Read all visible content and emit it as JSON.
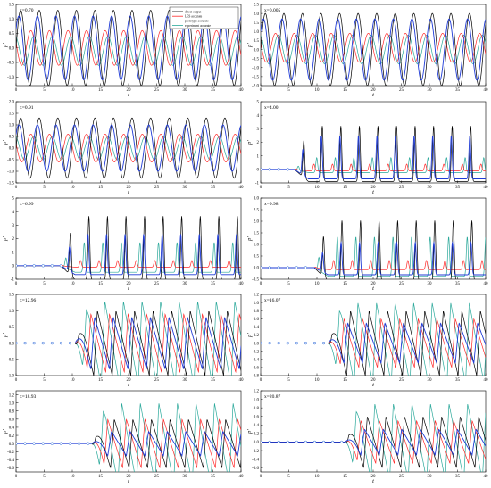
{
  "figure": {
    "series": [
      {
        "name": "direct output",
        "color": "#000000"
      },
      {
        "name": "LES accurate",
        "color": "#ff2a2a"
      },
      {
        "name": "prototype accurate",
        "color": "#1f3bd6"
      },
      {
        "name": "experiment accurate",
        "color": "#2aa89a"
      }
    ]
  },
  "chart_data": [
    {
      "type": "line",
      "annotation": "x=0.70",
      "xlabel": "t",
      "ylabel": "p'",
      "xlim": [
        0,
        40
      ],
      "ylim": [
        -1.3,
        1.5
      ],
      "yticks": [
        -1.0,
        -0.5,
        0.0,
        0.5,
        1.0,
        1.5
      ],
      "xticks": [
        0,
        5,
        10,
        15,
        20,
        25,
        30,
        35,
        40
      ],
      "onset": 0,
      "period": 3.3,
      "shape": "sine",
      "amp": [
        1.3,
        0.6,
        1.1,
        0.5
      ],
      "offset": [
        0.0,
        0.0,
        0.0,
        -0.1
      ],
      "phase": [
        0.0,
        0.45,
        0.1,
        0.3
      ],
      "markers": false,
      "legend": true
    },
    {
      "type": "line",
      "annotation": "x=0.005",
      "xlabel": "t",
      "ylabel": "p'",
      "xlim": [
        0,
        40
      ],
      "ylim": [
        -2.0,
        2.5
      ],
      "yticks": [
        -2.0,
        -1.5,
        -1.0,
        -0.5,
        0.0,
        0.5,
        1.0,
        1.5,
        2.0,
        2.5
      ],
      "xticks": [
        0,
        5,
        10,
        15,
        20,
        25,
        30,
        35,
        40
      ],
      "onset": 0,
      "period": 3.3,
      "shape": "sine",
      "amp": [
        2.0,
        0.8,
        1.7,
        0.8
      ],
      "offset": [
        0.0,
        0.1,
        0.0,
        0.0
      ],
      "phase": [
        0.0,
        0.45,
        0.1,
        0.3
      ],
      "markers": false,
      "legend": false
    },
    {
      "type": "line",
      "annotation": "x=0.91",
      "xlabel": "t",
      "ylabel": "p'",
      "xlim": [
        0,
        40
      ],
      "ylim": [
        -1.5,
        2.0
      ],
      "yticks": [
        -1.5,
        -1.0,
        -0.5,
        0.0,
        0.5,
        1.0,
        1.5,
        2.0
      ],
      "xticks": [
        0,
        5,
        10,
        15,
        20,
        25,
        30,
        35,
        40
      ],
      "onset": 0,
      "period": 3.3,
      "shape": "sine",
      "amp": [
        1.3,
        0.6,
        1.0,
        0.5
      ],
      "offset": [
        0.0,
        0.0,
        0.0,
        0.0
      ],
      "phase": [
        0.0,
        0.45,
        0.1,
        0.3
      ],
      "markers": false,
      "legend": false
    },
    {
      "type": "line",
      "annotation": "x=4.00",
      "xlabel": "t",
      "ylabel": "p'",
      "xlim": [
        0,
        40
      ],
      "ylim": [
        -1,
        5
      ],
      "yticks": [
        -1,
        0,
        1,
        2,
        3,
        4,
        5
      ],
      "xticks": [
        0,
        5,
        10,
        15,
        20,
        25,
        30,
        35,
        40
      ],
      "onset": 6,
      "period": 3.3,
      "shape": "spike",
      "amp": [
        4.1,
        0.5,
        3.2,
        1.1
      ],
      "offset": [
        0.0,
        0.0,
        0.0,
        0.0
      ],
      "phase": [
        0.0,
        0.45,
        0.05,
        0.3
      ],
      "markers": true,
      "legend": false
    },
    {
      "type": "line",
      "annotation": "x=6.99",
      "xlabel": "t",
      "ylabel": "p'",
      "xlim": [
        0,
        40
      ],
      "ylim": [
        -1,
        5
      ],
      "yticks": [
        -1,
        0,
        1,
        2,
        3,
        4,
        5
      ],
      "xticks": [
        0,
        5,
        10,
        15,
        20,
        25,
        30,
        35,
        40
      ],
      "onset": 8,
      "period": 3.3,
      "shape": "spike",
      "amp": [
        4.7,
        0.5,
        3.0,
        2.2
      ],
      "offset": [
        0.0,
        0.0,
        0.0,
        0.0
      ],
      "phase": [
        0.0,
        0.45,
        0.05,
        0.25
      ],
      "markers": true,
      "legend": false
    },
    {
      "type": "line",
      "annotation": "x=9.98",
      "xlabel": "t",
      "ylabel": "p'",
      "xlim": [
        0,
        40
      ],
      "ylim": [
        -0.5,
        3.0
      ],
      "yticks": [
        -0.5,
        0.0,
        0.5,
        1.0,
        1.5,
        2.0,
        2.5,
        3.0
      ],
      "xticks": [
        0,
        5,
        10,
        15,
        20,
        25,
        30,
        35,
        40
      ],
      "onset": 9.5,
      "period": 3.3,
      "shape": "spike",
      "amp": [
        2.6,
        0.4,
        1.4,
        1.7
      ],
      "offset": [
        0.0,
        0.0,
        0.0,
        0.0
      ],
      "phase": [
        0.0,
        0.45,
        0.05,
        0.25
      ],
      "markers": true,
      "legend": false
    },
    {
      "type": "line",
      "annotation": "x=12.96",
      "xlabel": "t",
      "ylabel": "p'",
      "xlim": [
        0,
        40
      ],
      "ylim": [
        -1.0,
        1.5
      ],
      "yticks": [
        -1.0,
        -0.5,
        0.0,
        0.5,
        1.0,
        1.5
      ],
      "xticks": [
        0,
        5,
        10,
        15,
        20,
        25,
        30,
        35,
        40
      ],
      "onset": 10.5,
      "period": 3.3,
      "shape": "saw",
      "amp": [
        1.0,
        0.9,
        0.8,
        1.3
      ],
      "offset": [
        0.0,
        0.0,
        0.0,
        0.0
      ],
      "phase": [
        0.0,
        0.35,
        0.15,
        0.6
      ],
      "markers": true,
      "legend": false
    },
    {
      "type": "line",
      "annotation": "x=16.07",
      "xlabel": "t",
      "ylabel": "p'",
      "xlim": [
        0,
        40
      ],
      "ylim": [
        -0.8,
        1.2
      ],
      "yticks": [
        -0.8,
        -0.6,
        -0.4,
        -0.2,
        0.0,
        0.2,
        0.4,
        0.6,
        0.8,
        1.0,
        1.2
      ],
      "xticks": [
        0,
        5,
        10,
        15,
        20,
        25,
        30,
        35,
        40
      ],
      "onset": 12,
      "period": 3.3,
      "shape": "saw",
      "amp": [
        0.8,
        0.6,
        0.5,
        1.0
      ],
      "offset": [
        0.0,
        0.0,
        0.0,
        0.0
      ],
      "phase": [
        0.0,
        0.35,
        0.15,
        0.6
      ],
      "markers": true,
      "legend": false
    },
    {
      "type": "line",
      "annotation": "x=18.93",
      "xlabel": "t",
      "ylabel": "p'",
      "xlim": [
        0,
        40
      ],
      "ylim": [
        -0.7,
        1.3
      ],
      "yticks": [
        -0.6,
        -0.4,
        -0.2,
        0.0,
        0.2,
        0.4,
        0.6,
        0.8,
        1.0,
        1.2
      ],
      "xticks": [
        0,
        5,
        10,
        15,
        20,
        25,
        30,
        35,
        40
      ],
      "onset": 13.5,
      "period": 3.3,
      "shape": "saw",
      "amp": [
        0.6,
        0.6,
        0.3,
        1.0
      ],
      "offset": [
        0.0,
        0.0,
        0.0,
        0.0
      ],
      "phase": [
        0.0,
        0.35,
        0.15,
        0.6
      ],
      "markers": true,
      "legend": false
    },
    {
      "type": "line",
      "annotation": "x=20.87",
      "xlabel": "t",
      "ylabel": "p'",
      "xlim": [
        0,
        40
      ],
      "ylim": [
        -0.7,
        1.2
      ],
      "yticks": [
        -0.6,
        -0.4,
        -0.2,
        0.0,
        0.2,
        0.4,
        0.6,
        0.8,
        1.0,
        1.2
      ],
      "xticks": [
        0,
        5,
        10,
        15,
        20,
        25,
        30,
        35,
        40
      ],
      "onset": 15,
      "period": 3.3,
      "shape": "saw",
      "amp": [
        0.6,
        0.5,
        0.3,
        0.9
      ],
      "offset": [
        0.0,
        0.0,
        0.0,
        0.0
      ],
      "phase": [
        0.0,
        0.35,
        0.15,
        0.6
      ],
      "markers": true,
      "legend": false
    }
  ]
}
